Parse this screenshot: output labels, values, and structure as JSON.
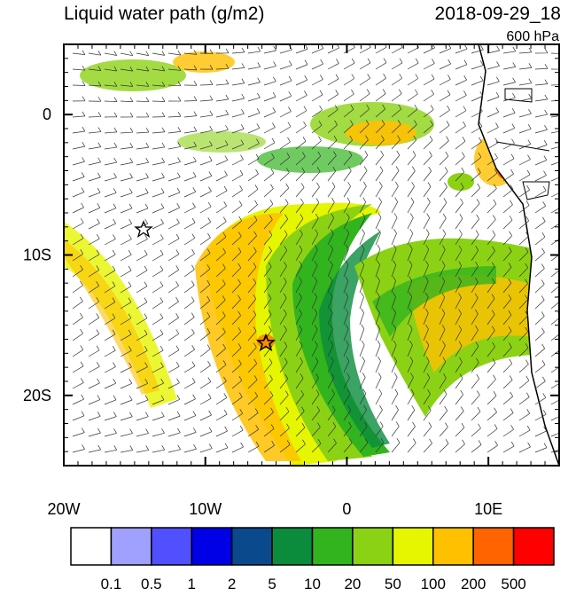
{
  "title": "Liquid water path (g/m2)",
  "date": "2018-09-29_18",
  "level": "600 hPa",
  "map": {
    "xlim": [
      -20,
      15
    ],
    "ylim": [
      5,
      -25
    ],
    "xticks": [
      {
        "value": -20,
        "label": "20W"
      },
      {
        "value": -10,
        "label": "10W"
      },
      0,
      {
        "value": 10,
        "label": "10E"
      }
    ],
    "yticks": [
      0,
      {
        "value": -10,
        "label": "10S"
      },
      {
        "value": -20,
        "label": "20S"
      }
    ]
  },
  "colorbar": {
    "levels": [
      0.1,
      0.5,
      1,
      2,
      5,
      10,
      20,
      50,
      100,
      200,
      500
    ],
    "colors": [
      "#ffffff",
      "#a0a0ff",
      "#5050ff",
      "#0000e6",
      "#0a4a8c",
      "#0a8c3c",
      "#32b41e",
      "#8cd214",
      "#e6f500",
      "#ffc000",
      "#ff6400",
      "#ff0000"
    ]
  }
}
